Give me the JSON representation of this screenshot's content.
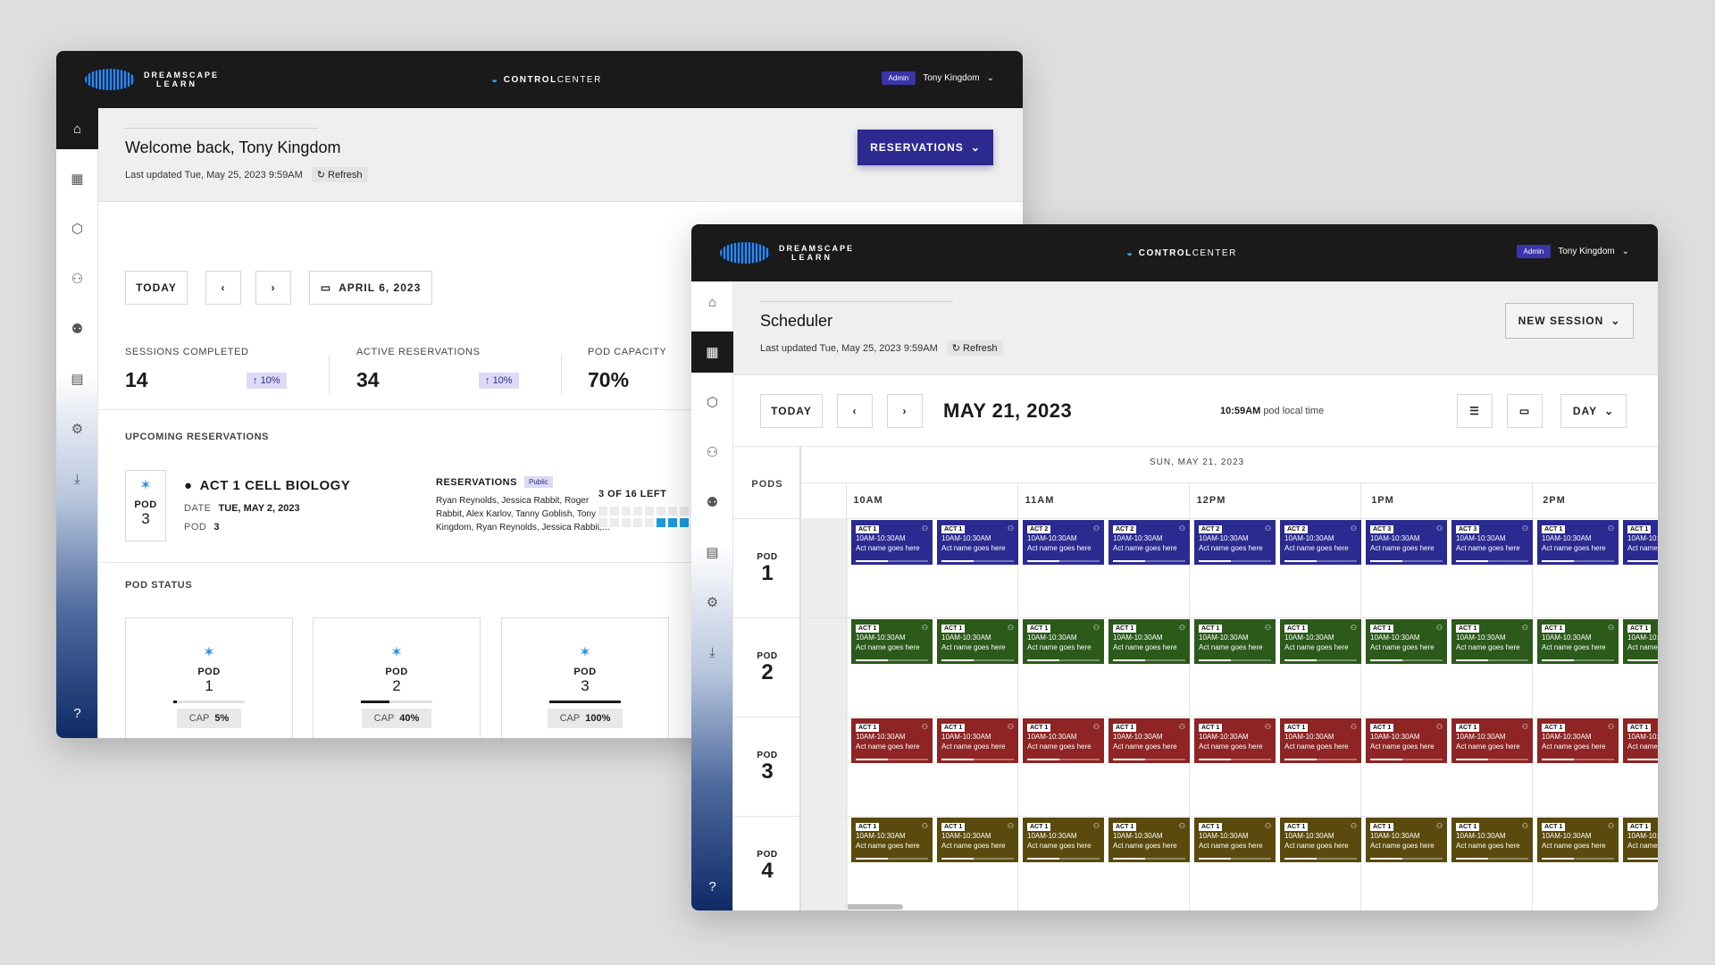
{
  "brand": {
    "logo_line1": "DREAMSCAPE",
    "logo_line2": "LEARN",
    "control_bold": "CONTROL",
    "control_rest": "CENTER"
  },
  "user": {
    "role": "Admin",
    "name": "Tony Kingdom"
  },
  "dashboard": {
    "title": "Welcome back, Tony Kingdom",
    "last_updated": "Last updated Tue, May 25, 2023 9:59AM",
    "refresh": "Refresh",
    "reservations_button": "RESERVATIONS",
    "today": "TODAY",
    "date": "APRIL 6, 2023",
    "stats": [
      {
        "label": "SESSIONS COMPLETED",
        "value": "14",
        "delta": "10%"
      },
      {
        "label": "ACTIVE RESERVATIONS",
        "value": "34",
        "delta": "10%"
      },
      {
        "label": "POD CAPACITY",
        "value": "70%"
      }
    ],
    "upcoming_label": "UPCOMING RESERVATIONS",
    "upcoming": {
      "pod_word": "POD",
      "pod_num": "3",
      "act": "ACT 1 CELL BIOLOGY",
      "date_key": "DATE",
      "date_val": "TUE, MAY 2, 2023",
      "pod_key": "POD",
      "pod_val": "3",
      "reservations_label": "RESERVATIONS",
      "public": "Public",
      "names_line1": "Ryan Reynolds, Jessica Rabbit, Roger",
      "names_line2": "Rabbit, Alex Karlov, Tanny Goblish, Tony",
      "names_line3": "Kingdom, Ryan Reynolds, Jessica Rabbit,...",
      "left": "3 OF 16 LEFT"
    },
    "pod_status_label": "POD STATUS",
    "pods": [
      {
        "word": "POD",
        "num": "1",
        "cap_key": "CAP",
        "cap": "5%",
        "fill": 0.05
      },
      {
        "word": "POD",
        "num": "2",
        "cap_key": "CAP",
        "cap": "40%",
        "fill": 0.4
      },
      {
        "word": "POD",
        "num": "3",
        "cap_key": "CAP",
        "cap": "100%",
        "fill": 1.0
      }
    ]
  },
  "scheduler": {
    "title": "Scheduler",
    "last_updated": "Last updated Tue, May 25, 2023 9:59AM",
    "refresh": "Refresh",
    "new_session": "NEW SESSION",
    "today": "TODAY",
    "date": "MAY 21, 2023",
    "local_time": "10:59AM",
    "local_time_suffix": "pod local time",
    "view": "DAY",
    "pods_header": "PODS",
    "day_header": "SUN, MAY 21, 2023",
    "hours": [
      "10AM",
      "11AM",
      "12PM",
      "1PM",
      "2PM"
    ],
    "pod_rows": [
      {
        "word": "POD",
        "num": "1",
        "color": "#2b2a91"
      },
      {
        "word": "POD",
        "num": "2",
        "color": "#2b5a1a"
      },
      {
        "word": "POD",
        "num": "3",
        "color": "#8e2424"
      },
      {
        "word": "POD",
        "num": "4",
        "color": "#5a4a0e"
      }
    ],
    "session_time": "10AM-10:30AM",
    "session_name": "Act name goes here",
    "row_acts": [
      [
        "ACT 1",
        "ACT 1",
        "ACT 2",
        "ACT 2",
        "ACT 2",
        "ACT 2",
        "ACT 3",
        "ACT 3",
        "ACT 1",
        "ACT 1"
      ],
      [
        "ACT 1",
        "ACT 1",
        "ACT 1",
        "ACT 1",
        "ACT 1",
        "ACT 1",
        "ACT 1",
        "ACT 1",
        "ACT 1",
        "ACT 1"
      ],
      [
        "ACT 1",
        "ACT 1",
        "ACT 1",
        "ACT 1",
        "ACT 1",
        "ACT 1",
        "ACT 1",
        "ACT 1",
        "ACT 1",
        "ACT 1"
      ],
      [
        "ACT 1",
        "ACT 1",
        "ACT 1",
        "ACT 1",
        "ACT 1",
        "ACT 1",
        "ACT 1",
        "ACT 1",
        "ACT 1",
        "ACT 1"
      ]
    ]
  },
  "icons": [
    "home-icon",
    "calendar-icon",
    "pod-icon",
    "user-icon",
    "group-icon",
    "map-icon",
    "gear-icon",
    "download-icon",
    "help-icon"
  ]
}
